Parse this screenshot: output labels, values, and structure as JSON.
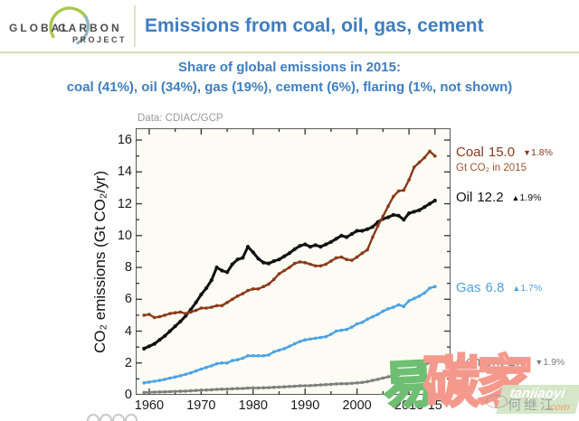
{
  "header": {
    "logo": {
      "global": "GLOBAL",
      "carbon": "CARBON",
      "project": "PROJECT"
    },
    "title": "Emissions from coal, oil, gas, cement"
  },
  "subtitle": {
    "line1": "Share of global emissions in 2015:",
    "line2": "coal (41%), oil (34%), gas (19%), cement (6%), flaring (1%, not shown)"
  },
  "colors": {
    "title_blue": "#3e7ec1",
    "separator": "#dcdcae",
    "plot_bg": "#fcfcf4",
    "axis": "#333333"
  },
  "chart_data": {
    "type": "line",
    "source_note": "Data: CDIAC/GCP",
    "ylabel": "CO₂ emissions (Gt CO₂/yr)",
    "units_note": "Gt CO₂ in 2015",
    "x_start_year": 1959,
    "xlim": [
      1957.4,
      2018
    ],
    "ylim": [
      0,
      16.74
    ],
    "grid": false,
    "legend_position": "right-annotations",
    "xticks": {
      "major": [
        1960,
        1970,
        1980,
        1990,
        2000,
        2010,
        2015
      ],
      "labels": [
        "1960",
        "1970",
        "1980",
        "1990",
        "2000",
        "2010",
        "15"
      ],
      "minor": [
        1965,
        1975,
        1985,
        1995,
        2005
      ]
    },
    "yticks": {
      "major": [
        0,
        2,
        4,
        6,
        8,
        10,
        12,
        14,
        16
      ],
      "labels": [
        "0",
        "2",
        "4",
        "6",
        "8",
        "10",
        "12",
        "14",
        "16"
      ],
      "minor": [
        1,
        3,
        5,
        7,
        9,
        11,
        13,
        15
      ]
    },
    "series": [
      {
        "name": "Coal",
        "value_label": "15.0",
        "change": "1.8%",
        "change_dir": "down",
        "glyph": "▼",
        "color": "#8b3a1a",
        "values": [
          5.0,
          5.05,
          4.85,
          4.9,
          5.0,
          5.1,
          5.15,
          5.2,
          5.1,
          5.2,
          5.3,
          5.45,
          5.45,
          5.5,
          5.6,
          5.6,
          5.8,
          6.0,
          6.2,
          6.35,
          6.55,
          6.65,
          6.65,
          6.8,
          6.95,
          7.25,
          7.6,
          7.8,
          8.0,
          8.25,
          8.35,
          8.3,
          8.2,
          8.1,
          8.1,
          8.2,
          8.4,
          8.6,
          8.65,
          8.5,
          8.45,
          8.65,
          8.9,
          9.1,
          9.9,
          10.6,
          11.2,
          11.85,
          12.45,
          12.8,
          12.85,
          13.5,
          14.3,
          14.6,
          14.9,
          15.3,
          15.0
        ]
      },
      {
        "name": "Oil",
        "value_label": "12.2",
        "change": "1.9%",
        "change_dir": "up",
        "glyph": "▲",
        "color": "#111111",
        "values": [
          2.9,
          3.05,
          3.2,
          3.45,
          3.7,
          4.0,
          4.3,
          4.6,
          4.95,
          5.35,
          5.8,
          6.3,
          6.7,
          7.2,
          8.0,
          7.8,
          7.7,
          8.2,
          8.5,
          8.6,
          9.3,
          8.95,
          8.55,
          8.3,
          8.25,
          8.4,
          8.5,
          8.7,
          8.9,
          9.15,
          9.35,
          9.45,
          9.3,
          9.4,
          9.3,
          9.45,
          9.6,
          9.8,
          10.0,
          9.9,
          10.1,
          10.3,
          10.3,
          10.4,
          10.55,
          10.85,
          11.05,
          11.15,
          11.3,
          11.25,
          11.0,
          11.4,
          11.5,
          11.6,
          11.8,
          12.0,
          12.2
        ]
      },
      {
        "name": "Gas",
        "value_label": "6.8",
        "change": "1.7%",
        "change_dir": "up",
        "glyph": "▲",
        "color": "#4da3e4",
        "values": [
          0.75,
          0.8,
          0.85,
          0.9,
          0.97,
          1.05,
          1.12,
          1.2,
          1.28,
          1.38,
          1.5,
          1.62,
          1.72,
          1.82,
          1.95,
          2.0,
          2.0,
          2.15,
          2.2,
          2.3,
          2.45,
          2.45,
          2.45,
          2.45,
          2.5,
          2.7,
          2.8,
          2.9,
          3.05,
          3.2,
          3.35,
          3.45,
          3.5,
          3.55,
          3.6,
          3.65,
          3.8,
          4.0,
          4.05,
          4.1,
          4.25,
          4.45,
          4.55,
          4.75,
          4.9,
          5.05,
          5.25,
          5.4,
          5.5,
          5.65,
          5.55,
          5.9,
          6.05,
          6.2,
          6.4,
          6.7,
          6.8
        ]
      },
      {
        "name": "Cement",
        "value_label": "2.0",
        "change": "1.9%",
        "change_dir": "down",
        "glyph": "▼",
        "color": "#7f7f7f",
        "values": [
          0.15,
          0.16,
          0.17,
          0.18,
          0.19,
          0.2,
          0.21,
          0.22,
          0.23,
          0.25,
          0.27,
          0.29,
          0.3,
          0.32,
          0.34,
          0.35,
          0.36,
          0.38,
          0.39,
          0.4,
          0.42,
          0.43,
          0.43,
          0.44,
          0.45,
          0.47,
          0.48,
          0.5,
          0.52,
          0.54,
          0.56,
          0.57,
          0.58,
          0.6,
          0.62,
          0.64,
          0.66,
          0.68,
          0.7,
          0.7,
          0.72,
          0.75,
          0.78,
          0.83,
          0.9,
          0.97,
          1.05,
          1.13,
          1.2,
          1.26,
          1.33,
          1.46,
          1.6,
          1.72,
          1.85,
          2.04,
          2.0
        ]
      }
    ]
  },
  "watermark": {
    "char1": "易",
    "char2": "碳",
    "char3": "家",
    "badge_line1": "tanjiaoyi",
    "badge_line2": ".com",
    "overlay_text": "何继江"
  }
}
